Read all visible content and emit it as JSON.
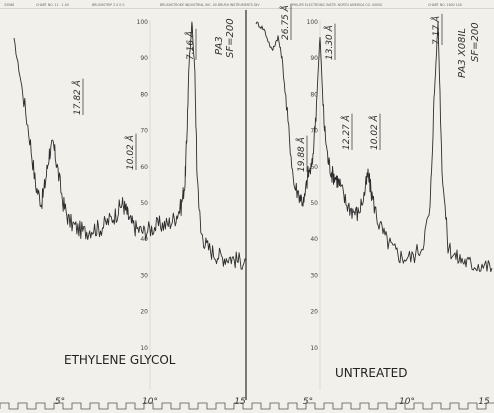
{
  "header": {
    "items": [
      "33568",
      "CHART NO. 11 - 1.00",
      "BRUSHSTRIP 2 0 0 0",
      "BRUSHSTROKE INDUSTRIAL INC. 00 BRUSH INSTRUMENTS DIV",
      "PHILIPS ELECTRONIC INSTR. NORTH AMERICA CO. 00000",
      "CHART NO. 1600 100"
    ]
  },
  "chart_data": [
    {
      "type": "line",
      "panel_label": "ETHYLENE GLYCOL",
      "sample": "PA3",
      "settings": "SF=200",
      "xticks": [
        "5°",
        "10°",
        "15"
      ],
      "yticks": [
        "100",
        "90",
        "80",
        "70",
        "60",
        "50",
        "40",
        "30",
        "20",
        "10"
      ],
      "ylim": [
        0,
        100
      ],
      "xlim": [
        3.2,
        15
      ],
      "peak_labels": [
        {
          "text": "17.82 Å",
          "x": 5.0
        },
        {
          "text": "10.02 Å",
          "x": 8.8
        },
        {
          "text": "7.16 Å",
          "x": 12.3
        }
      ],
      "x": [
        3.2,
        3.6,
        4.0,
        4.3,
        4.6,
        4.8,
        5.0,
        5.2,
        5.4,
        5.7,
        6.0,
        6.4,
        6.8,
        7.2,
        7.6,
        8.0,
        8.4,
        8.7,
        8.9,
        9.1,
        9.4,
        9.8,
        10.2,
        10.6,
        11.0,
        11.4,
        11.7,
        11.9,
        12.0,
        12.1,
        12.25,
        12.4,
        12.5,
        12.7,
        13.0,
        13.4,
        13.8,
        14.2,
        14.6,
        15.0
      ],
      "y": [
        95,
        82,
        68,
        55,
        50,
        56,
        64,
        66,
        60,
        50,
        45,
        43,
        42,
        43,
        43,
        45,
        47,
        50,
        48,
        45,
        43,
        42,
        43,
        44,
        44,
        46,
        49,
        56,
        70,
        88,
        100,
        86,
        60,
        42,
        38,
        36,
        35,
        35,
        34,
        34
      ]
    },
    {
      "type": "line",
      "panel_label": "UNTREATED",
      "sample": "PA3",
      "settings": "X08IL SF=200",
      "xticks": [
        "5°",
        "10°",
        "15"
      ],
      "yticks": [
        "100",
        "90",
        "80",
        "70",
        "60",
        "50",
        "40",
        "30",
        "20",
        "10"
      ],
      "ylim": [
        0,
        100
      ],
      "xlim": [
        3.2,
        15
      ],
      "peak_labels": [
        {
          "text": "26.75 Å",
          "x": 4.5
        },
        {
          "text": "19.88 Å",
          "x": 5.6
        },
        {
          "text": "13.30 Å",
          "x": 6.4
        },
        {
          "text": "12.27 Å",
          "x": 7.2
        },
        {
          "text": "10.02 Å",
          "x": 8.8
        },
        {
          "text": "7.17 Å",
          "x": 12.3
        }
      ],
      "x": [
        3.2,
        3.6,
        4.0,
        4.3,
        4.5,
        4.8,
        5.1,
        5.4,
        5.6,
        5.8,
        6.0,
        6.2,
        6.4,
        6.6,
        6.8,
        7.0,
        7.2,
        7.4,
        7.7,
        8.0,
        8.3,
        8.6,
        8.8,
        9.0,
        9.3,
        9.7,
        10.1,
        10.5,
        11.0,
        11.5,
        11.9,
        12.1,
        12.3,
        12.5,
        12.8,
        13.2,
        13.6,
        14.0,
        14.5,
        15.0
      ],
      "y": [
        100,
        98,
        92,
        96,
        90,
        72,
        55,
        52,
        50,
        58,
        60,
        75,
        96,
        72,
        62,
        58,
        57,
        55,
        50,
        48,
        47,
        52,
        58,
        52,
        45,
        40,
        37,
        35,
        35,
        38,
        48,
        78,
        100,
        60,
        38,
        35,
        34,
        33,
        33,
        32
      ]
    }
  ]
}
